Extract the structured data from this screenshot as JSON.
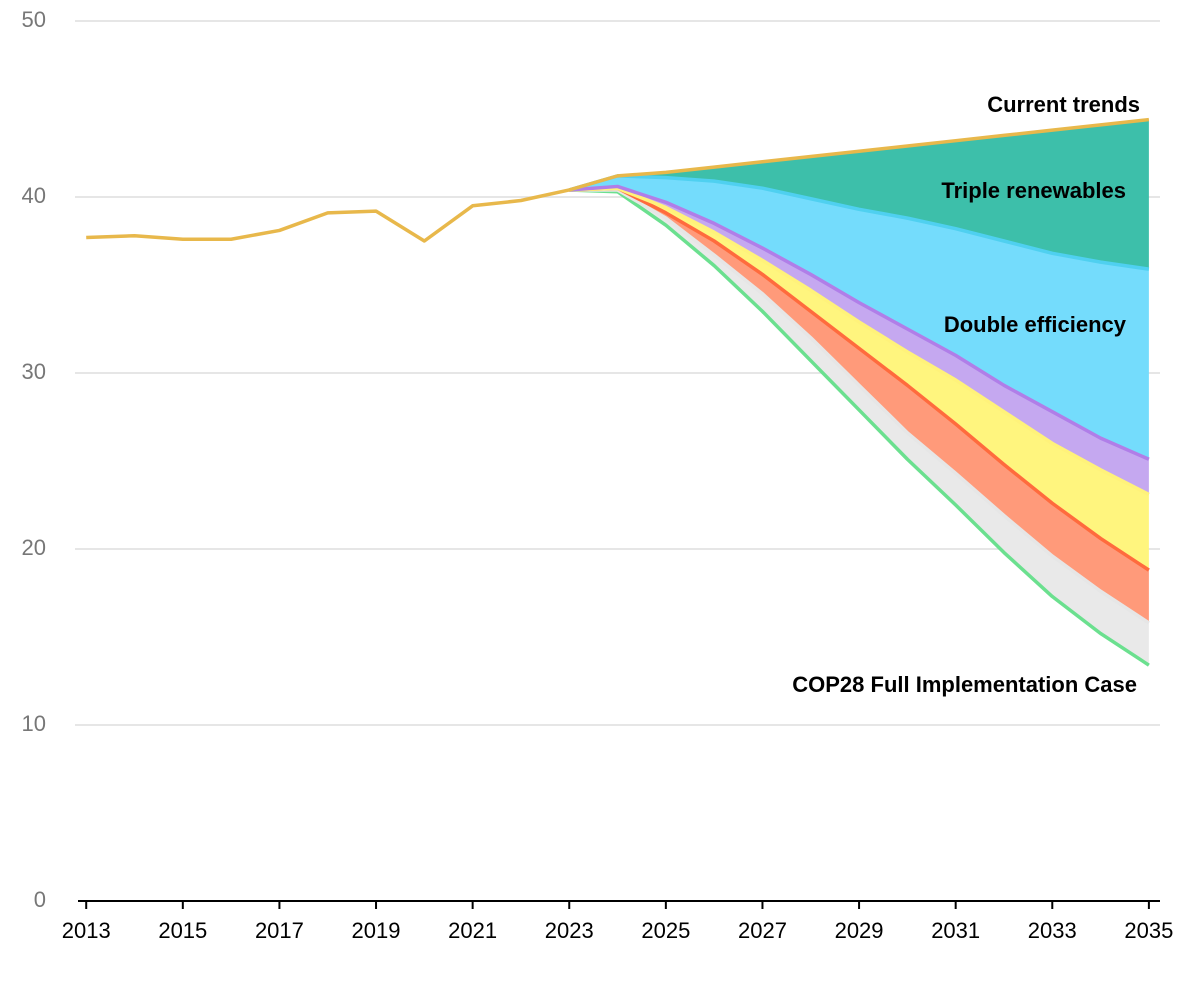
{
  "chart_data": {
    "type": "line",
    "x": [
      2013,
      2014,
      2015,
      2016,
      2017,
      2018,
      2019,
      2020,
      2021,
      2022,
      2023,
      2024,
      2025,
      2026,
      2027,
      2028,
      2029,
      2030,
      2031,
      2032,
      2033,
      2034,
      2035
    ],
    "series": [
      {
        "name": "Current trends",
        "color": "#e8b84b",
        "fill": "#3dbfaa",
        "values": [
          37.7,
          37.8,
          37.6,
          37.6,
          38.1,
          39.1,
          39.2,
          37.5,
          39.5,
          39.8,
          40.4,
          41.2,
          41.4,
          41.7,
          42.0,
          42.3,
          42.6,
          42.9,
          43.2,
          43.5,
          43.8,
          44.1,
          44.4
        ]
      },
      {
        "name": "Triple renewables",
        "color": "#4fd0f0",
        "fill": "#74dcfc",
        "values": [
          null,
          null,
          null,
          null,
          null,
          null,
          null,
          null,
          null,
          null,
          40.4,
          41.2,
          41.1,
          40.9,
          40.5,
          39.9,
          39.3,
          38.8,
          38.2,
          37.5,
          36.8,
          36.3,
          35.9
        ]
      },
      {
        "name": "Double efficiency",
        "color": "#b07ee8",
        "fill": "#c5a8f0",
        "values": [
          null,
          null,
          null,
          null,
          null,
          null,
          null,
          null,
          null,
          null,
          40.4,
          40.6,
          39.7,
          38.5,
          37.1,
          35.6,
          34.0,
          32.5,
          31.0,
          29.3,
          27.8,
          26.3,
          25.1
        ]
      },
      {
        "color": "#fff27a",
        "fill": "#fff57e",
        "values": [
          null,
          null,
          null,
          null,
          null,
          null,
          null,
          null,
          null,
          null,
          40.4,
          40.5,
          39.4,
          38.0,
          36.4,
          34.7,
          32.9,
          31.2,
          29.6,
          27.8,
          26.0,
          24.5,
          23.1
        ]
      },
      {
        "color": "#ff6b3d",
        "fill": "#ff9a7a",
        "values": [
          null,
          null,
          null,
          null,
          null,
          null,
          null,
          null,
          null,
          null,
          40.4,
          40.5,
          39.1,
          37.5,
          35.6,
          33.5,
          31.4,
          29.3,
          27.1,
          24.8,
          22.6,
          20.6,
          18.8
        ]
      },
      {
        "color": "#e6e6e6",
        "fill": "#e9e9e9",
        "values": [
          null,
          null,
          null,
          null,
          null,
          null,
          null,
          null,
          null,
          null,
          40.4,
          40.4,
          38.8,
          36.7,
          34.5,
          32.0,
          29.3,
          26.6,
          24.3,
          21.9,
          19.6,
          17.6,
          15.8
        ]
      },
      {
        "name": "COP28 Full Implementation Case",
        "color": "#6be08f",
        "values": [
          null,
          null,
          null,
          null,
          null,
          null,
          null,
          null,
          null,
          null,
          40.4,
          40.3,
          38.4,
          36.1,
          33.5,
          30.7,
          27.9,
          25.1,
          22.5,
          19.8,
          17.3,
          15.2,
          13.4
        ]
      }
    ],
    "xlim": [
      2012.83,
      2035.23
    ],
    "xticks": [
      2013,
      2015,
      2017,
      2019,
      2021,
      2023,
      2025,
      2027,
      2029,
      2031,
      2033,
      2035
    ],
    "ylim": [
      0,
      50
    ],
    "yticks": [
      0,
      10,
      20,
      30,
      40,
      50
    ],
    "grid": true
  }
}
